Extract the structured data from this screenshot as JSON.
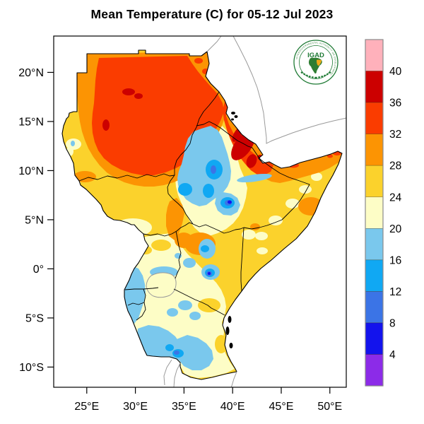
{
  "title": "Mean Temperature (C) for 05-12 Jul 2023",
  "palette": {
    "sea": "#FFFFFF",
    "frame": "#000000",
    "foreign_line": "#9A9A9A",
    "pink": "#FFB1BB",
    "darkred": "#CC0000",
    "red": "#FA3C00",
    "orange": "#FC9403",
    "gold": "#FBD22C",
    "pale": "#FDFDC6",
    "lightblue": "#7AC8ED",
    "cyan": "#10A8F3",
    "medblue": "#3B74E6",
    "blue": "#1313ED",
    "purple": "#8C2BE8"
  },
  "colorbar": {
    "unit_note": "temperature scale in degrees C",
    "bands": [
      {
        "color": "#FFB1BB",
        "label": "40"
      },
      {
        "color": "#CC0000",
        "label": "36"
      },
      {
        "color": "#FA3C00",
        "label": "32"
      },
      {
        "color": "#FC9403",
        "label": "28"
      },
      {
        "color": "#FBD22C",
        "label": "24"
      },
      {
        "color": "#FDFDC6",
        "label": "20"
      },
      {
        "color": "#7AC8ED",
        "label": "16"
      },
      {
        "color": "#10A8F3",
        "label": "12"
      },
      {
        "color": "#3B74E6",
        "label": "8"
      },
      {
        "color": "#1313ED",
        "label": "4"
      },
      {
        "color": "#8C2BE8",
        "label": ""
      }
    ]
  },
  "axes": {
    "lat_ticks": [
      {
        "label": "20°N",
        "lat": 20
      },
      {
        "label": "15°N",
        "lat": 15
      },
      {
        "label": "10°N",
        "lat": 10
      },
      {
        "label": "5°N",
        "lat": 5
      },
      {
        "label": "0°",
        "lat": 0
      },
      {
        "label": "5°S",
        "lat": -5
      },
      {
        "label": "10°S",
        "lat": -10
      }
    ],
    "lon_ticks": [
      {
        "label": "25°E",
        "lon": 25
      },
      {
        "label": "30°E",
        "lon": 30
      },
      {
        "label": "35°E",
        "lon": 35
      },
      {
        "label": "40°E",
        "lon": 40
      },
      {
        "label": "45°E",
        "lon": 45
      },
      {
        "label": "50°E",
        "lon": 50
      }
    ]
  },
  "logo": {
    "word": "IGAD",
    "ring_text": "INTERGOVERNMENTAL AUTHORITY ON DEVELOPMENT"
  }
}
